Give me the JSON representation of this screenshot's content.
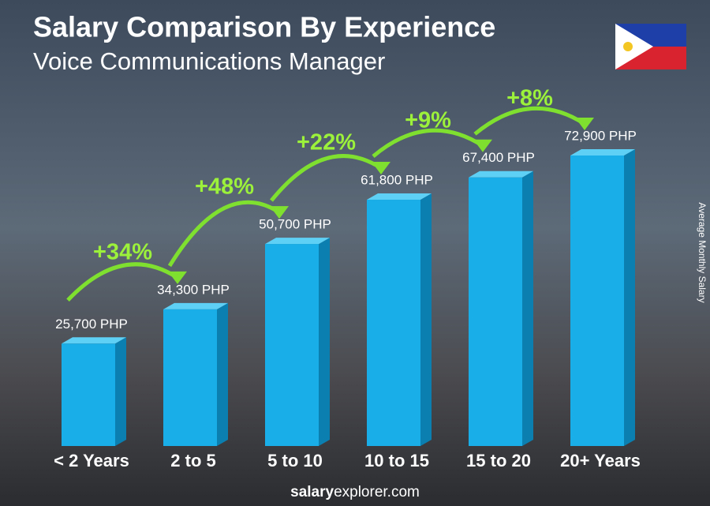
{
  "chart_data": {
    "type": "bar",
    "title": "Salary Comparison By Experience",
    "subtitle": "Voice Communications Manager",
    "y_label": "Average Monthly Salary",
    "categories": [
      "< 2 Years",
      "2 to 5",
      "5 to 10",
      "10 to 15",
      "15 to 20",
      "20+ Years"
    ],
    "values": [
      25700,
      34300,
      50700,
      61800,
      67400,
      72900
    ],
    "value_labels": [
      "25,700 PHP",
      "34,300 PHP",
      "50,700 PHP",
      "61,800 PHP",
      "67,400 PHP",
      "72,900 PHP"
    ],
    "changes": [
      "+34%",
      "+48%",
      "+22%",
      "+9%",
      "+8%"
    ],
    "color": "#1aaee8",
    "footer": {
      "brand": "salary",
      "rest": "explorer.com"
    }
  }
}
